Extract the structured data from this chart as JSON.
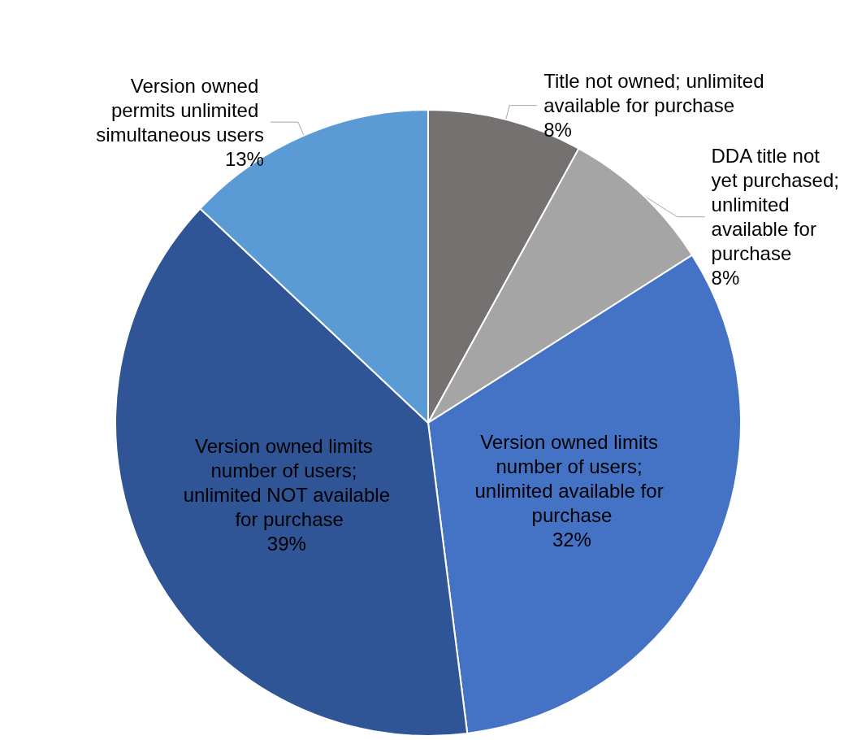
{
  "chart_data": {
    "type": "pie",
    "categories": [
      "Title not owned; unlimited available for purchase",
      "DDA title not yet purchased; unlimited available for purchase",
      "Version owned limits number of users; unlimited available for purchase",
      "Version owned limits number of users; unlimited NOT available for purchase",
      "Version owned permits unlimited simultaneous users"
    ],
    "values": [
      8,
      8,
      32,
      39,
      13
    ],
    "value_labels": [
      "8%",
      "8%",
      "32%",
      "39%",
      "13%"
    ],
    "colors": [
      "#767171",
      "#a5a5a5",
      "#4472c4",
      "#2f5597",
      "#5b9bd5"
    ],
    "legend": false
  }
}
